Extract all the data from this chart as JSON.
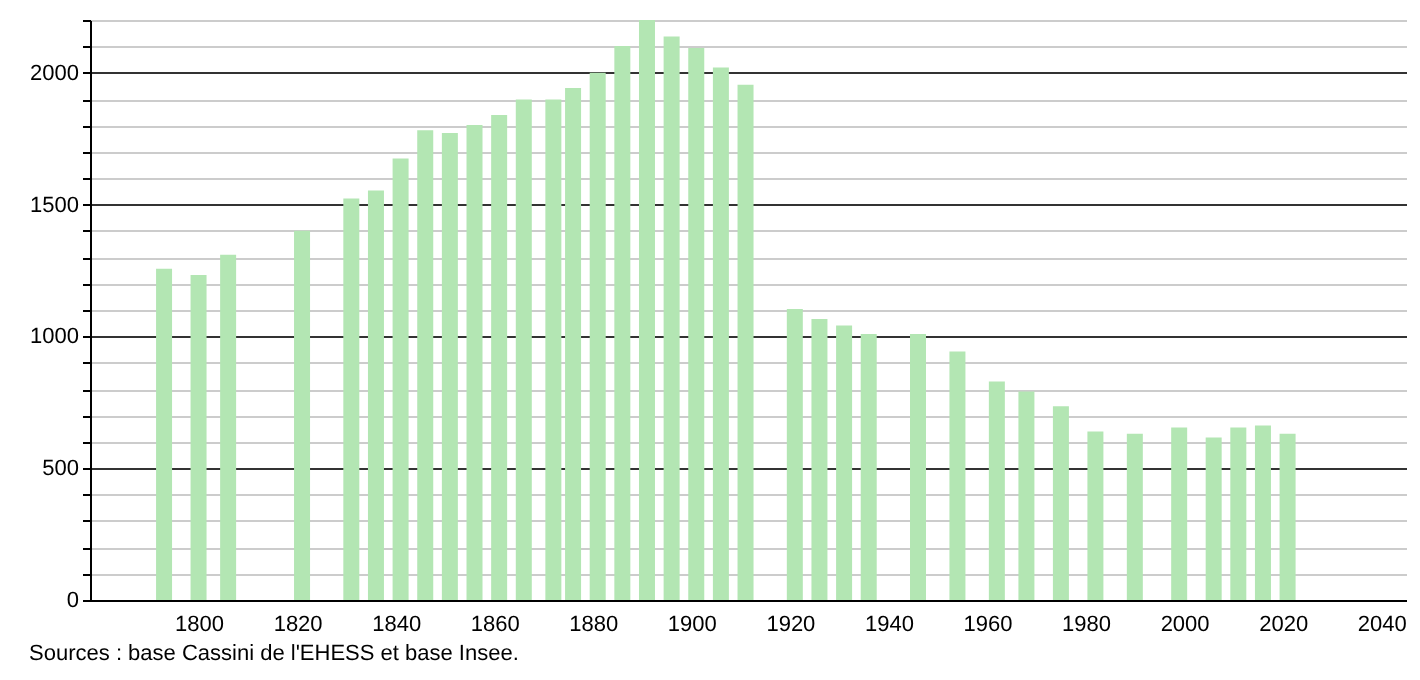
{
  "chart_data": {
    "type": "bar",
    "x": [
      1793,
      1800,
      1806,
      1821,
      1831,
      1836,
      1841,
      1846,
      1851,
      1856,
      1861,
      1866,
      1872,
      1876,
      1881,
      1886,
      1891,
      1896,
      1901,
      1906,
      1911,
      1921,
      1926,
      1931,
      1936,
      1946,
      1954,
      1962,
      1968,
      1975,
      1982,
      1990,
      1999,
      2006,
      2011,
      2016,
      2021
    ],
    "values": [
      1256,
      1233,
      1310,
      1401,
      1523,
      1553,
      1675,
      1782,
      1771,
      1802,
      1840,
      1898,
      1898,
      1942,
      2000,
      2101,
      2200,
      2137,
      2094,
      2020,
      1954,
      1104,
      1066,
      1041,
      1009,
      1009,
      943,
      829,
      791,
      735,
      639,
      631,
      654,
      616,
      654,
      662,
      631
    ],
    "color": "#b3e6b3",
    "xlim": [
      1780,
      2043
    ],
    "xticks": [
      1800,
      1820,
      1840,
      1860,
      1880,
      1900,
      1920,
      1940,
      1960,
      1980,
      2000,
      2020,
      2040
    ],
    "ylim": [
      0,
      2200
    ],
    "yticks": [
      0,
      {
        "value": 100,
        "label": null
      },
      {
        "value": 200,
        "label": null
      },
      {
        "value": 300,
        "label": null
      },
      {
        "value": 400,
        "label": null
      },
      500,
      {
        "value": 600,
        "label": null
      },
      {
        "value": 700,
        "label": null
      },
      {
        "value": 800,
        "label": null
      },
      {
        "value": 900,
        "label": null
      },
      1000,
      {
        "value": 1100,
        "label": null
      },
      {
        "value": 1200,
        "label": null
      },
      {
        "value": 1300,
        "label": null
      },
      {
        "value": 1400,
        "label": null
      },
      1500,
      {
        "value": 1600,
        "label": null
      },
      {
        "value": 1700,
        "label": null
      },
      {
        "value": 1800,
        "label": null
      },
      {
        "value": 1900,
        "label": null
      },
      2000,
      {
        "value": 2100,
        "label": null
      },
      {
        "value": 2200,
        "label": null
      }
    ],
    "grid": "y",
    "annotations": [
      "Sources : base Cassini de l'EHESS et base Insee."
    ]
  }
}
